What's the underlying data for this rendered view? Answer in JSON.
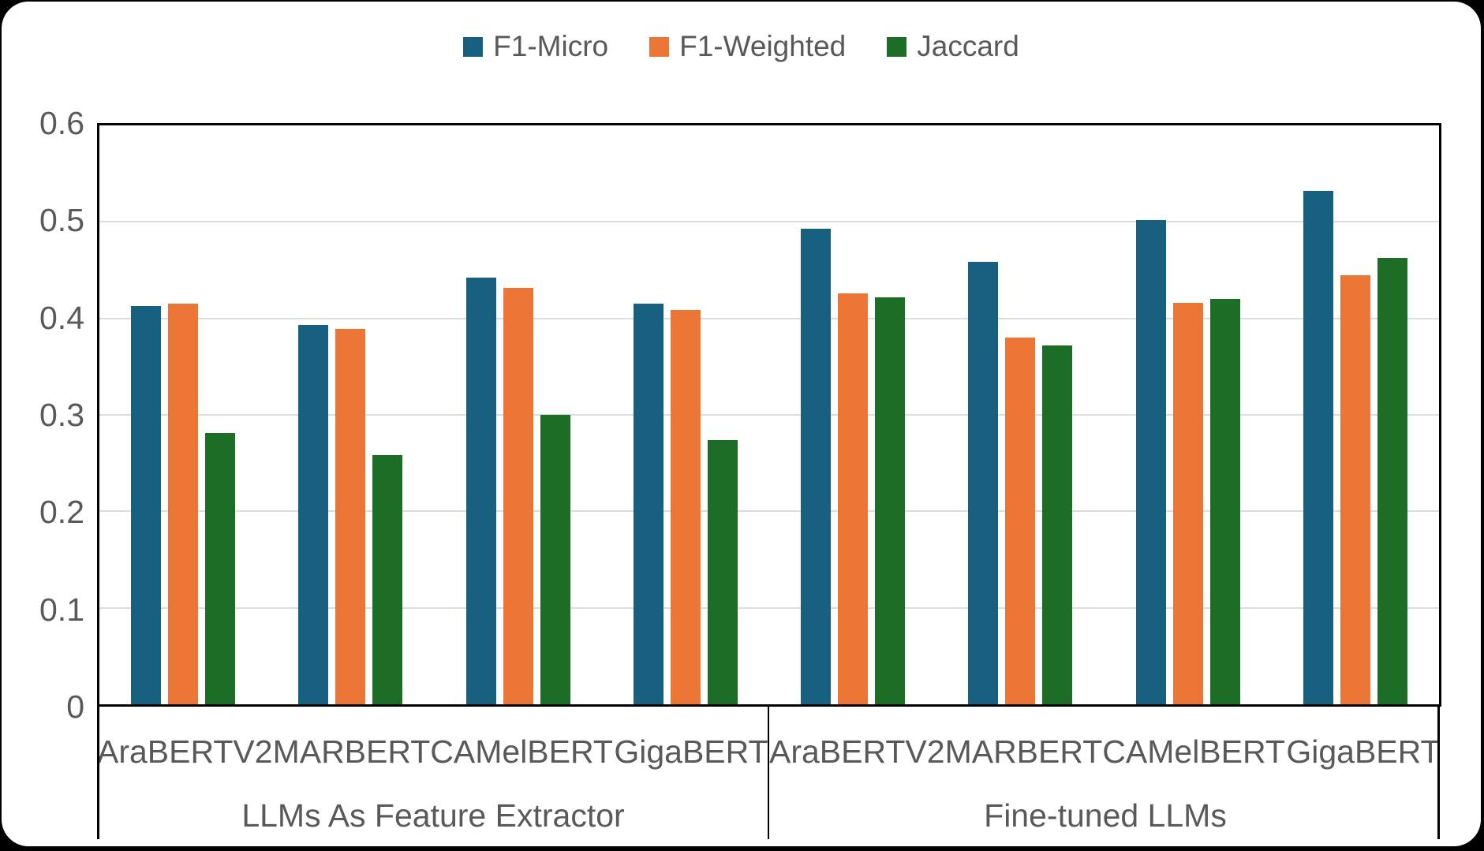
{
  "chart_title": "",
  "legend": {
    "position": "top",
    "items": [
      "F1-Micro",
      "F1-Weighted",
      "Jaccard"
    ]
  },
  "colors": {
    "f1_micro": "#17607F",
    "f1_weighted": "#EA7535",
    "jaccard": "#1C6E27",
    "gridline": "#DCDCDC",
    "axis": "#000000",
    "label_text": "#595959",
    "card_background": "#FFFFFF",
    "page_background": "#000000"
  },
  "chart_data": {
    "type": "bar",
    "title": "",
    "xlabel": "",
    "ylabel": "",
    "categories": [
      "AraBERTV2",
      "MARBERT",
      "CAMelBERT",
      "GigaBERT",
      "AraBERTV2",
      "MARBERT",
      "CAMelBERT",
      "GigaBERT"
    ],
    "group_labels": [
      "LLMs As Feature Extractor",
      "Fine-tuned LLMs"
    ],
    "categories_per_group": 4,
    "series": [
      {
        "name": "F1-Micro",
        "color": "#17607F",
        "values": [
          0.413,
          0.393,
          0.442,
          0.415,
          0.493,
          0.459,
          0.502,
          0.532
        ]
      },
      {
        "name": "F1-Weighted",
        "color": "#EA7535",
        "values": [
          0.415,
          0.389,
          0.432,
          0.409,
          0.426,
          0.38,
          0.416,
          0.445
        ]
      },
      {
        "name": "Jaccard",
        "color": "#1C6E27",
        "values": [
          0.281,
          0.258,
          0.3,
          0.274,
          0.422,
          0.372,
          0.42,
          0.463
        ]
      }
    ],
    "ylim": [
      0,
      0.6
    ],
    "yticks": [
      0,
      0.1,
      0.2,
      0.3,
      0.4,
      0.5,
      0.6
    ],
    "ytick_labels": [
      "0",
      "0.1",
      "0.2",
      "0.3",
      "0.4",
      "0.5",
      "0.6"
    ],
    "grid": true,
    "legend_position": "top"
  }
}
